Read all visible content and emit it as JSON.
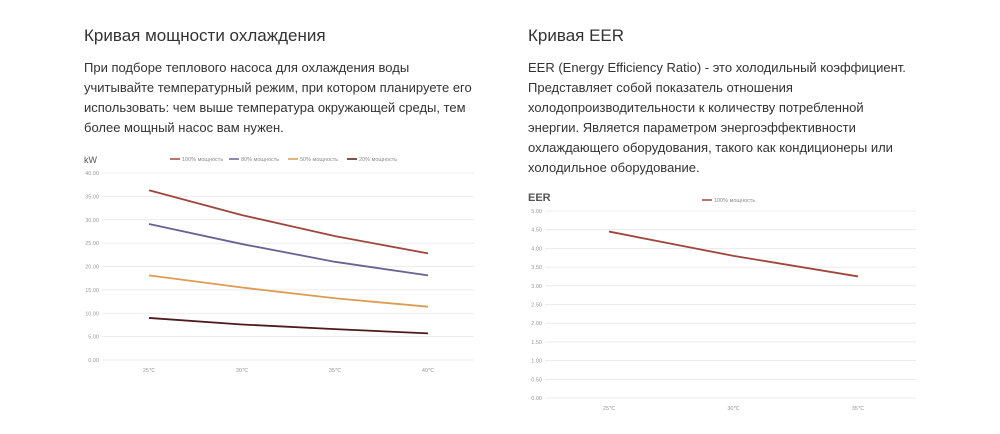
{
  "left": {
    "title": "Кривая мощности охлаждения",
    "text_lines": [
      "При подборе теплового насоса для охлаждения воды",
      "учитывайте температурный режим, при котором планируете его",
      "использовать: чем выше температура окружающей среды, тем",
      "более мощный насос вам нужен."
    ]
  },
  "right": {
    "title": "Кривая EER",
    "text_lines": [
      "EER (Energy Efficiency Ratio) - это холодильный коэффициент.",
      "Представляет собой показатель отношения",
      "холодопроизводительности к количеству потребленной",
      "энергии. Является параметром энергоэффективности",
      "охлаждающего оборудования, такого как кондиционеры или",
      "холодильное оборудование."
    ]
  },
  "chart_data": [
    {
      "type": "line",
      "title": "",
      "ylabel": "kW",
      "xlabel": "",
      "categories": [
        "25℃",
        "30℃",
        "35℃",
        "40℃"
      ],
      "ylim": [
        0,
        40
      ],
      "yticks": [
        "0.00",
        "5.00",
        "10.00",
        "15.00",
        "20.00",
        "25.00",
        "30.00",
        "35.00",
        "40.00"
      ],
      "grid": true,
      "legend_position": "top",
      "series": [
        {
          "name": "100% мощность",
          "color": "#a0453c",
          "values": [
            36.3,
            31.0,
            26.5,
            22.8
          ]
        },
        {
          "name": "80% мощность",
          "color": "#6c6196",
          "values": [
            29.1,
            24.8,
            21.0,
            18.1
          ]
        },
        {
          "name": "50% мощность",
          "color": "#dd9c52",
          "values": [
            18.1,
            15.5,
            13.2,
            11.4
          ]
        },
        {
          "name": "20% мощность",
          "color": "#4e1a1a",
          "values": [
            9.0,
            7.6,
            6.6,
            5.7
          ]
        }
      ]
    },
    {
      "type": "line",
      "title": "",
      "ylabel": "EER",
      "xlabel": "",
      "categories": [
        "25℃",
        "30℃",
        "35℃"
      ],
      "ylim": [
        0,
        5
      ],
      "yticks": [
        "0.00",
        "0.50",
        "1.00",
        "1.50",
        "2.00",
        "2.50",
        "3.00",
        "3.50",
        "4.00",
        "4.50",
        "5.00"
      ],
      "grid": true,
      "legend_position": "top",
      "series": [
        {
          "name": "100% мощность",
          "color": "#a0453c",
          "values": [
            4.45,
            3.8,
            3.25
          ]
        }
      ]
    }
  ]
}
